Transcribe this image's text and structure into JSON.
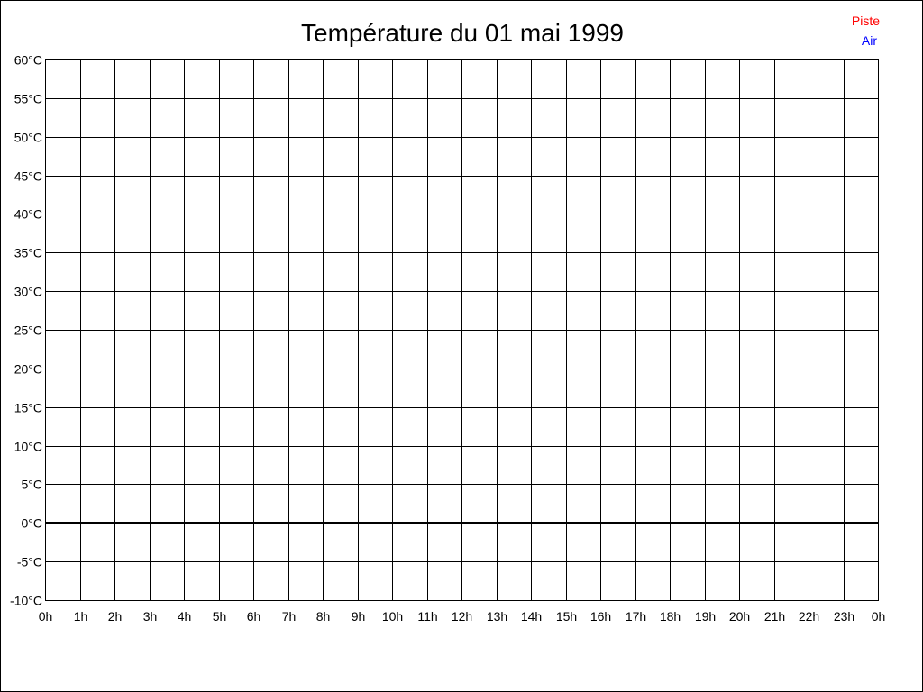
{
  "chart_data": {
    "type": "line",
    "title": "Température du 01 mai 1999",
    "xlabel": "",
    "ylabel": "",
    "x_tick_labels": [
      "0h",
      "1h",
      "2h",
      "3h",
      "4h",
      "5h",
      "6h",
      "7h",
      "8h",
      "9h",
      "10h",
      "11h",
      "12h",
      "13h",
      "14h",
      "15h",
      "16h",
      "17h",
      "18h",
      "19h",
      "20h",
      "21h",
      "22h",
      "23h",
      "0h"
    ],
    "y_tick_labels": [
      "60°C",
      "55°C",
      "50°C",
      "45°C",
      "40°C",
      "35°C",
      "30°C",
      "25°C",
      "20°C",
      "15°C",
      "10°C",
      "5°C",
      "0°C",
      "-5°C",
      "-10°C"
    ],
    "xlim": [
      0,
      24
    ],
    "ylim": [
      -10,
      60
    ],
    "y_step": 5,
    "grid": true,
    "legend_position": "top-right",
    "series": [
      {
        "name": "Piste",
        "color": "#ff0000",
        "values": []
      },
      {
        "name": "Air",
        "color": "#0000ff",
        "values": []
      }
    ]
  }
}
